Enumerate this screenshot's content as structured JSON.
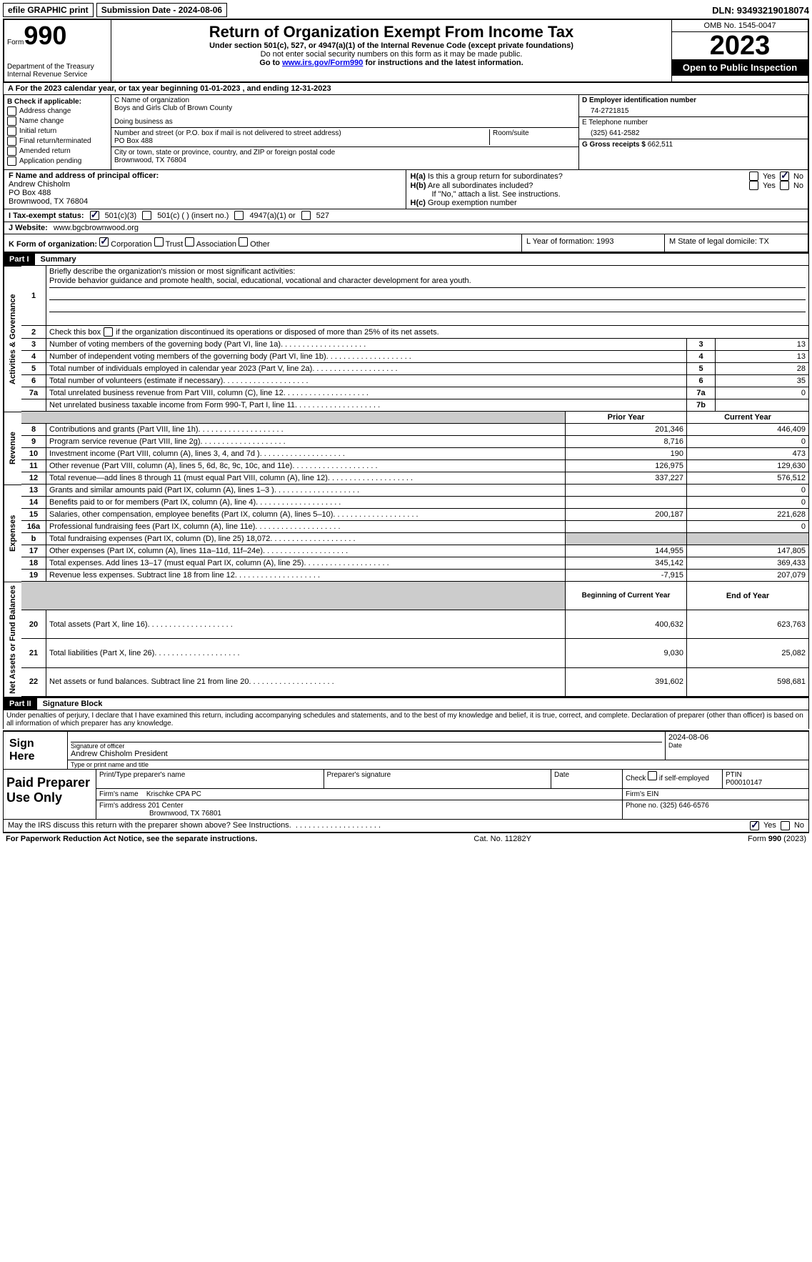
{
  "topbar": {
    "efile": "efile GRAPHIC print",
    "submission_label": "Submission Date - 2024-08-06",
    "dln": "DLN: 93493219018074"
  },
  "header": {
    "form_word": "Form",
    "form_number": "990",
    "dept1": "Department of the Treasury",
    "dept2": "Internal Revenue Service",
    "title": "Return of Organization Exempt From Income Tax",
    "sub1": "Under section 501(c), 527, or 4947(a)(1) of the Internal Revenue Code (except private foundations)",
    "sub2": "Do not enter social security numbers on this form as it may be made public.",
    "sub3_a": "Go to ",
    "sub3_link": "www.irs.gov/Form990",
    "sub3_b": " for instructions and the latest information.",
    "omb": "OMB No. 1545-0047",
    "year": "2023",
    "open": "Open to Public Inspection"
  },
  "line_a": "A  For the 2023 calendar year, or tax year beginning 01-01-2023   , and ending 12-31-2023",
  "section_b": {
    "title": "B Check if applicable:",
    "items": [
      "Address change",
      "Name change",
      "Initial return",
      "Final return/terminated",
      "Amended return",
      "Application pending"
    ]
  },
  "section_c": {
    "name_label": "C Name of organization",
    "name": "Boys and Girls Club of Brown County",
    "dba_label": "Doing business as",
    "addr_label": "Number and street (or P.O. box if mail is not delivered to street address)",
    "room_label": "Room/suite",
    "addr": "PO Box 488",
    "city_label": "City or town, state or province, country, and ZIP or foreign postal code",
    "city": "Brownwood, TX  76804"
  },
  "section_d": {
    "ein_label": "D Employer identification number",
    "ein": "74-2721815",
    "phone_label": "E Telephone number",
    "phone": "(325) 641-2582",
    "receipts_label": "G Gross receipts $",
    "receipts": "662,511"
  },
  "section_f": {
    "label": "F  Name and address of principal officer:",
    "name": "Andrew Chisholm",
    "addr1": "PO Box 488",
    "addr2": "Brownwood, TX  76804"
  },
  "section_h": {
    "ha": "H(a)  Is this a group return for subordinates?",
    "hb": "H(b)  Are all subordinates included?",
    "hb_note": "If \"No,\" attach a list. See instructions.",
    "hc": "H(c)  Group exemption number",
    "yes": "Yes",
    "no": "No"
  },
  "tax_exempt": {
    "label": "I   Tax-exempt status:",
    "c3": "501(c)(3)",
    "c": "501(c) (   ) (insert no.)",
    "a1": "4947(a)(1) or",
    "s527": "527"
  },
  "website": {
    "label": "J   Website:",
    "value": "www.bgcbrownwood.org"
  },
  "section_k": {
    "label": "K Form of organization:",
    "corp": "Corporation",
    "trust": "Trust",
    "assoc": "Association",
    "other": "Other"
  },
  "section_l": "L Year of formation: 1993",
  "section_m": "M State of legal domicile: TX",
  "part1": {
    "label": "Part I",
    "title": "Summary",
    "q1": "Briefly describe the organization's mission or most significant activities:",
    "mission": "Provide behavior guidance and promote health, social, educational, vocational and character development for area youth.",
    "q2": "Check this box        if the organization discontinued its operations or disposed of more than 25% of its net assets.",
    "vlabel1": "Activities & Governance",
    "vlabel2": "Revenue",
    "vlabel3": "Expenses",
    "vlabel4": "Net Assets or Fund Balances",
    "lines_gov": [
      {
        "n": "3",
        "t": "Number of voting members of the governing body (Part VI, line 1a)",
        "k": "3",
        "v": "13"
      },
      {
        "n": "4",
        "t": "Number of independent voting members of the governing body (Part VI, line 1b)",
        "k": "4",
        "v": "13"
      },
      {
        "n": "5",
        "t": "Total number of individuals employed in calendar year 2023 (Part V, line 2a)",
        "k": "5",
        "v": "28"
      },
      {
        "n": "6",
        "t": "Total number of volunteers (estimate if necessary)",
        "k": "6",
        "v": "35"
      },
      {
        "n": "7a",
        "t": "Total unrelated business revenue from Part VIII, column (C), line 12",
        "k": "7a",
        "v": "0"
      },
      {
        "n": "",
        "t": "Net unrelated business taxable income from Form 990-T, Part I, line 11",
        "k": "7b",
        "v": ""
      }
    ],
    "prior_label": "Prior Year",
    "current_label": "Current Year",
    "lines_rev": [
      {
        "n": "8",
        "t": "Contributions and grants (Part VIII, line 1h)",
        "p": "201,346",
        "c": "446,409"
      },
      {
        "n": "9",
        "t": "Program service revenue (Part VIII, line 2g)",
        "p": "8,716",
        "c": "0"
      },
      {
        "n": "10",
        "t": "Investment income (Part VIII, column (A), lines 3, 4, and 7d )",
        "p": "190",
        "c": "473"
      },
      {
        "n": "11",
        "t": "Other revenue (Part VIII, column (A), lines 5, 6d, 8c, 9c, 10c, and 11e)",
        "p": "126,975",
        "c": "129,630"
      },
      {
        "n": "12",
        "t": "Total revenue—add lines 8 through 11 (must equal Part VIII, column (A), line 12)",
        "p": "337,227",
        "c": "576,512"
      }
    ],
    "lines_exp": [
      {
        "n": "13",
        "t": "Grants and similar amounts paid (Part IX, column (A), lines 1–3 )",
        "p": "",
        "c": "0"
      },
      {
        "n": "14",
        "t": "Benefits paid to or for members (Part IX, column (A), line 4)",
        "p": "",
        "c": "0"
      },
      {
        "n": "15",
        "t": "Salaries, other compensation, employee benefits (Part IX, column (A), lines 5–10)",
        "p": "200,187",
        "c": "221,628"
      },
      {
        "n": "16a",
        "t": "Professional fundraising fees (Part IX, column (A), line 11e)",
        "p": "",
        "c": "0"
      },
      {
        "n": "b",
        "t": "Total fundraising expenses (Part IX, column (D), line 25) 18,072",
        "p": "SHADE",
        "c": "SHADE"
      },
      {
        "n": "17",
        "t": "Other expenses (Part IX, column (A), lines 11a–11d, 11f–24e)",
        "p": "144,955",
        "c": "147,805"
      },
      {
        "n": "18",
        "t": "Total expenses. Add lines 13–17 (must equal Part IX, column (A), line 25)",
        "p": "345,142",
        "c": "369,433"
      },
      {
        "n": "19",
        "t": "Revenue less expenses. Subtract line 18 from line 12",
        "p": "-7,915",
        "c": "207,079"
      }
    ],
    "begin_label": "Beginning of Current Year",
    "end_label": "End of Year",
    "lines_net": [
      {
        "n": "20",
        "t": "Total assets (Part X, line 16)",
        "p": "400,632",
        "c": "623,763"
      },
      {
        "n": "21",
        "t": "Total liabilities (Part X, line 26)",
        "p": "9,030",
        "c": "25,082"
      },
      {
        "n": "22",
        "t": "Net assets or fund balances. Subtract line 21 from line 20",
        "p": "391,602",
        "c": "598,681"
      }
    ]
  },
  "part2": {
    "label": "Part II",
    "title": "Signature Block",
    "declaration": "Under penalties of perjury, I declare that I have examined this return, including accompanying schedules and statements, and to the best of my knowledge and belief, it is true, correct, and complete. Declaration of preparer (other than officer) is based on all information of which preparer has any knowledge.",
    "sign_here": "Sign Here",
    "sig_date": "2024-08-06",
    "sig_officer_label": "Signature of officer",
    "officer": "Andrew Chisholm  President",
    "type_label": "Type or print name and title",
    "date_label": "Date",
    "paid": "Paid Preparer Use Only",
    "prep_name_label": "Print/Type preparer's name",
    "prep_sig_label": "Preparer's signature",
    "check_self": "Check         if self-employed",
    "ptin_label": "PTIN",
    "ptin": "P00010147",
    "firm_name_label": "Firm's name",
    "firm_name": "Krischke CPA PC",
    "firm_ein_label": "Firm's EIN",
    "firm_addr_label": "Firm's address",
    "firm_addr1": "201 Center",
    "firm_addr2": "Brownwood, TX  76801",
    "phone_label": "Phone no.",
    "phone": "(325) 646-6576",
    "discuss": "May the IRS discuss this return with the preparer shown above? See Instructions.",
    "yes": "Yes",
    "no": "No"
  },
  "footer": {
    "left": "For Paperwork Reduction Act Notice, see the separate instructions.",
    "mid": "Cat. No. 11282Y",
    "right_a": "Form ",
    "right_b": "990",
    "right_c": " (2023)"
  }
}
